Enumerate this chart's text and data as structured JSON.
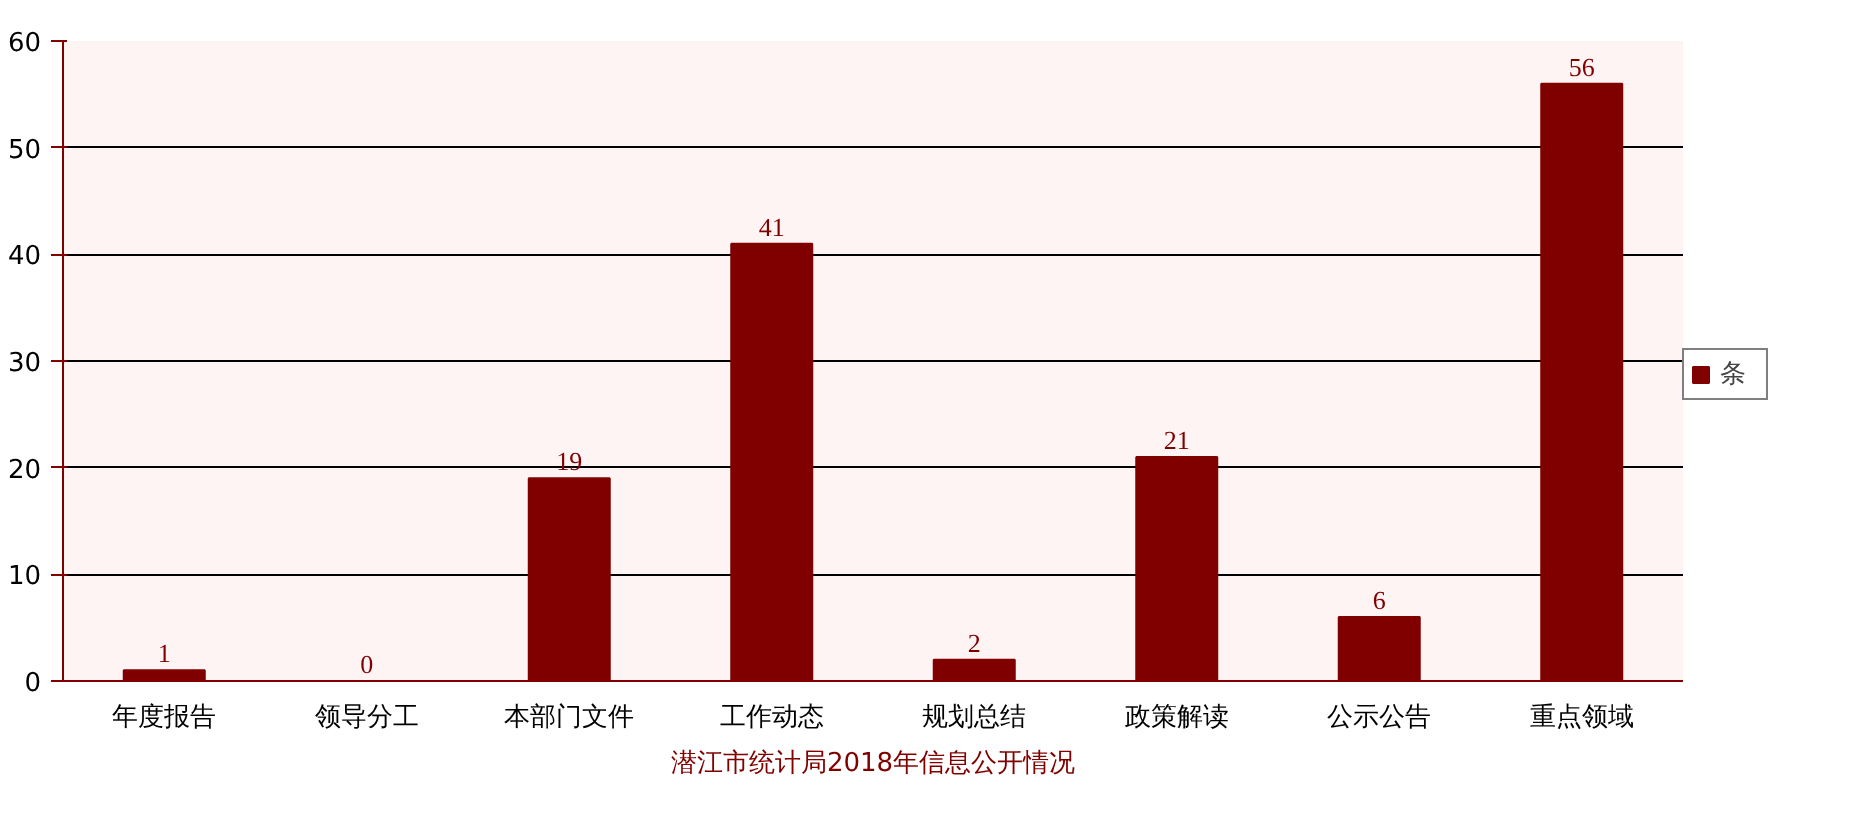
{
  "chart_data": {
    "type": "bar",
    "xlabel": "潜江市统计局2018年信息公开情况",
    "categories": [
      "年度报告",
      "领导分工",
      "本部门文件",
      "工作动态",
      "规划总结",
      "政策解读",
      "公示公告",
      "重点领域"
    ],
    "series": [
      {
        "name": "条",
        "color": "#800000",
        "values": [
          1,
          0,
          19,
          41,
          2,
          21,
          6,
          56
        ]
      }
    ],
    "ylim": [
      0,
      60
    ],
    "yticks": [
      0,
      10,
      20,
      30,
      40,
      50,
      60
    ],
    "grid": "y",
    "legend": "right",
    "data_labels": true
  }
}
